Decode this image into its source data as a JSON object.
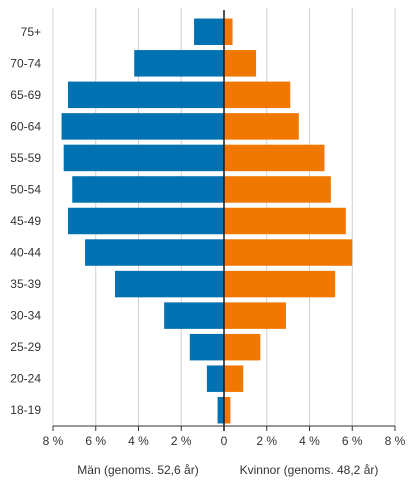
{
  "chart_data": {
    "type": "bar",
    "orientation": "horizontal",
    "categories": [
      "75+",
      "70-74",
      "65-69",
      "60-64",
      "55-59",
      "50-54",
      "45-49",
      "40-44",
      "35-39",
      "30-34",
      "25-29",
      "20-24",
      "18-19"
    ],
    "series": [
      {
        "name": "Män (genoms. 52,6 år)",
        "color": "#0072b2",
        "side": "left",
        "values": [
          1.4,
          4.2,
          7.3,
          7.6,
          7.5,
          7.1,
          7.3,
          6.5,
          5.1,
          2.8,
          1.6,
          0.8,
          0.3
        ]
      },
      {
        "name": "Kvinnor (genoms. 48,2 år)",
        "color": "#f07800",
        "side": "right",
        "values": [
          0.4,
          1.5,
          3.1,
          3.5,
          4.7,
          5.0,
          5.7,
          6.0,
          5.2,
          2.9,
          1.7,
          0.9,
          0.3
        ]
      }
    ],
    "xlim": [
      -8,
      8
    ],
    "xticks": [
      -8,
      -6,
      -4,
      -2,
      0,
      2,
      4,
      6,
      8
    ],
    "xtick_labels": [
      "8 %",
      "6 %",
      "4 %",
      "2 %",
      "0",
      "2 %",
      "4 %",
      "6 %",
      "8 %"
    ],
    "grid": true
  }
}
